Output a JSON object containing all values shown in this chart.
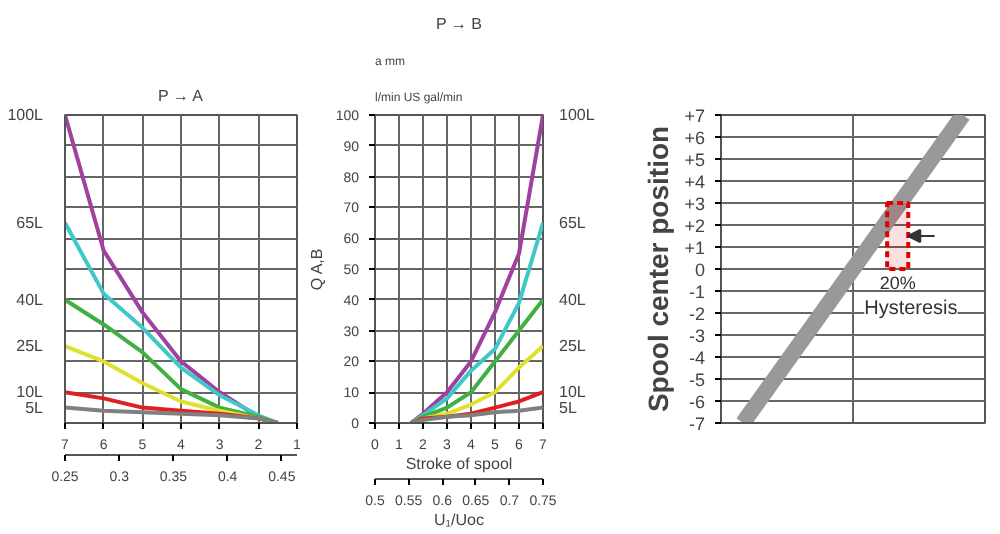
{
  "chart_data": [
    {
      "type": "line",
      "title": "P → A",
      "x": [
        7,
        6,
        5,
        4,
        3,
        2,
        1.5
      ],
      "xlim": [
        7,
        1
      ],
      "xticks": [
        7,
        6,
        5,
        4,
        3,
        2,
        1
      ],
      "ylim": [
        0,
        100
      ],
      "yticks": [
        0,
        10,
        20,
        30,
        40,
        50,
        60,
        70,
        80,
        90,
        100
      ],
      "tick_labels": "x",
      "grid": true,
      "legend": false,
      "marker": "none",
      "line_style": "solid",
      "x2lim": [
        0.25,
        0.464
      ],
      "x2ticks": [
        0.25,
        0.3,
        0.35,
        0.4,
        0.45
      ],
      "series": [
        {
          "name": "100L",
          "color": "#a040a0",
          "values": [
            100,
            56,
            36,
            20,
            10,
            2,
            0
          ]
        },
        {
          "name": "65L",
          "color": "#40c8c8",
          "values": [
            65,
            42,
            31,
            18,
            9,
            2.5,
            0
          ]
        },
        {
          "name": "40L",
          "color": "#40b040",
          "values": [
            40,
            32,
            23,
            11,
            5,
            2,
            0
          ]
        },
        {
          "name": "25L",
          "color": "#e0e030",
          "values": [
            25,
            20,
            13,
            7,
            4,
            1.5,
            0
          ]
        },
        {
          "name": "10L",
          "color": "#e02020",
          "values": [
            10,
            8,
            5,
            4,
            3,
            1.5,
            0
          ]
        },
        {
          "name": "5L",
          "color": "#808080",
          "values": [
            5,
            4,
            3.5,
            3,
            2.5,
            1.5,
            0
          ]
        }
      ]
    },
    {
      "type": "line",
      "title": "P → B",
      "ylabel": "Q A,B",
      "xlabel": "Stroke of spool",
      "x2label": "U₁/Uoc",
      "annotations": [
        "l/min  US gal/min",
        "a mm"
      ],
      "x": [
        1.5,
        2,
        3,
        4,
        5,
        6,
        7
      ],
      "xlim": [
        0,
        7
      ],
      "xticks": [
        0,
        1,
        2,
        3,
        4,
        5,
        6,
        7
      ],
      "ylim": [
        0,
        100
      ],
      "yticks": [
        0,
        10,
        20,
        30,
        40,
        50,
        60,
        70,
        80,
        90,
        100
      ],
      "grid": true,
      "legend": false,
      "marker": "none",
      "line_style": "solid",
      "x2lim": [
        0.5,
        0.75
      ],
      "x2ticks": [
        0.5,
        0.55,
        0.6,
        0.65,
        0.7,
        0.75
      ],
      "series": [
        {
          "name": "100L",
          "color": "#a040a0",
          "values": [
            0,
            3,
            10,
            20,
            36,
            55,
            100
          ]
        },
        {
          "name": "65L",
          "color": "#40c8c8",
          "values": [
            0,
            2.5,
            8,
            17,
            24,
            39,
            65
          ]
        },
        {
          "name": "40L",
          "color": "#40b040",
          "values": [
            0,
            2,
            5,
            10,
            20,
            30,
            40
          ]
        },
        {
          "name": "25L",
          "color": "#e0e030",
          "values": [
            0,
            1.5,
            3,
            6,
            10,
            18,
            25
          ]
        },
        {
          "name": "10L",
          "color": "#e02020",
          "values": [
            0,
            1.5,
            2,
            3,
            5,
            7,
            10
          ]
        },
        {
          "name": "5L",
          "color": "#808080",
          "values": [
            0,
            1,
            2,
            2.5,
            3.5,
            4,
            5
          ]
        }
      ]
    },
    {
      "type": "line",
      "ylabel": "Spool center position",
      "categories": [
        null,
        null,
        null,
        null,
        null,
        null
      ],
      "ylim": [
        -7,
        7
      ],
      "grid": true,
      "legend": false,
      "marker": "none",
      "line_style": "solid",
      "yticks": [
        {
          "value": 7,
          "label": "+7"
        },
        {
          "value": 6,
          "label": "+6"
        },
        {
          "value": 5,
          "label": "+5"
        },
        {
          "value": 4,
          "label": "+4"
        },
        {
          "value": 3,
          "label": "+3"
        },
        {
          "value": 2,
          "label": "+2"
        },
        {
          "value": 1,
          "label": "+1"
        },
        {
          "value": 0,
          "label": "0"
        },
        {
          "value": -1,
          "label": "-1"
        },
        {
          "value": -2,
          "label": "-2"
        },
        {
          "value": -3,
          "label": "-3"
        },
        {
          "value": -4,
          "label": "-4"
        },
        {
          "value": -5,
          "label": "-5"
        },
        {
          "value": -6,
          "label": "-6"
        },
        {
          "value": -7,
          "label": "-7"
        }
      ],
      "series": [
        {
          "color": "#999999",
          "values": [
            -7,
            -4.2,
            -1.4,
            1.4,
            4.2,
            7
          ]
        }
      ],
      "bands": [
        {
          "axis": "y",
          "from": 0,
          "to": 3,
          "label": "20%",
          "color": "#e00000"
        }
      ],
      "annotations": [
        "Hysteresis"
      ]
    }
  ]
}
